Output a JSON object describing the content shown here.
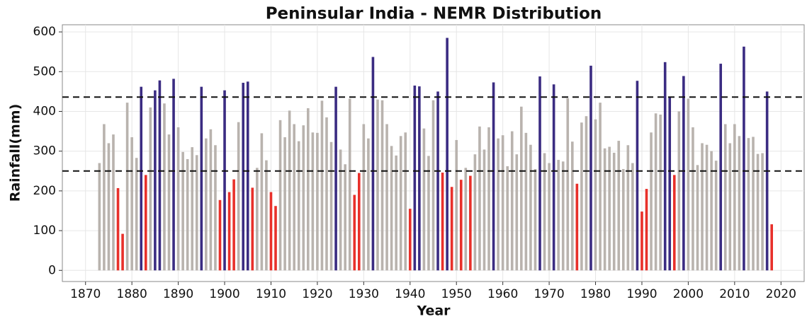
{
  "chart_data": {
    "type": "bar",
    "title": "Peninsular India - NEMR Distribution",
    "x_label": "Year",
    "y_label": "Rainfall(mm)",
    "x": [
      1873,
      1874,
      1875,
      1876,
      1877,
      1878,
      1879,
      1880,
      1881,
      1882,
      1883,
      1884,
      1885,
      1886,
      1887,
      1888,
      1889,
      1890,
      1891,
      1892,
      1893,
      1894,
      1895,
      1896,
      1897,
      1898,
      1899,
      1900,
      1901,
      1902,
      1903,
      1904,
      1905,
      1906,
      1907,
      1908,
      1909,
      1910,
      1911,
      1912,
      1913,
      1914,
      1915,
      1916,
      1917,
      1918,
      1919,
      1920,
      1921,
      1922,
      1923,
      1924,
      1925,
      1926,
      1927,
      1928,
      1929,
      1930,
      1931,
      1932,
      1933,
      1934,
      1935,
      1936,
      1937,
      1938,
      1939,
      1940,
      1941,
      1942,
      1943,
      1944,
      1945,
      1946,
      1947,
      1948,
      1949,
      1950,
      1951,
      1952,
      1953,
      1954,
      1955,
      1956,
      1957,
      1958,
      1959,
      1960,
      1961,
      1962,
      1963,
      1964,
      1965,
      1966,
      1967,
      1968,
      1969,
      1970,
      1971,
      1972,
      1973,
      1974,
      1975,
      1976,
      1977,
      1978,
      1979,
      1980,
      1981,
      1982,
      1983,
      1984,
      1985,
      1986,
      1987,
      1988,
      1989,
      1990,
      1991,
      1992,
      1993,
      1994,
      1995,
      1996,
      1997,
      1998,
      1999,
      2000,
      2001,
      2002,
      2003,
      2004,
      2005,
      2006,
      2007,
      2008,
      2009,
      2010,
      2011,
      2012,
      2013,
      2014,
      2015,
      2016,
      2017,
      2018
    ],
    "values": [
      270,
      368,
      320,
      342,
      207,
      92,
      422,
      335,
      283,
      462,
      240,
      410,
      453,
      478,
      420,
      342,
      482,
      360,
      298,
      280,
      310,
      290,
      462,
      332,
      355,
      315,
      177,
      453,
      197,
      229,
      373,
      472,
      475,
      208,
      258,
      345,
      277,
      197,
      162,
      378,
      335,
      402,
      368,
      325,
      365,
      408,
      347,
      346,
      427,
      385,
      323,
      462,
      304,
      267,
      432,
      190,
      245,
      368,
      332,
      537,
      430,
      428,
      368,
      313,
      289,
      338,
      347,
      155,
      465,
      463,
      357,
      288,
      428,
      450,
      246,
      585,
      210,
      328,
      228,
      258,
      238,
      292,
      362,
      304,
      360,
      473,
      332,
      340,
      262,
      350,
      292,
      412,
      346,
      316,
      255,
      488,
      295,
      270,
      468,
      278,
      274,
      433,
      324,
      218,
      372,
      388,
      515,
      380,
      422,
      307,
      311,
      296,
      326,
      255,
      315,
      270,
      477,
      148,
      205,
      347,
      395,
      392,
      524,
      437,
      240,
      400,
      489,
      432,
      360,
      265,
      320,
      316,
      300,
      276,
      520,
      368,
      320,
      368,
      338,
      563,
      333,
      336,
      293,
      295,
      450,
      116
    ],
    "hlines": [
      250,
      436
    ],
    "colors": {
      "below": "#e8302a",
      "normal": "#b9b3ae",
      "above": "#3b2c82"
    },
    "xlim": [
      1865,
      2025
    ],
    "ylim": [
      -28,
      618
    ],
    "xticks": [
      1870,
      1880,
      1890,
      1900,
      1910,
      1920,
      1930,
      1940,
      1950,
      1960,
      1970,
      1980,
      1990,
      2000,
      2010,
      2020
    ],
    "yticks": [
      0,
      100,
      200,
      300,
      400,
      500,
      600
    ],
    "grid": true
  }
}
